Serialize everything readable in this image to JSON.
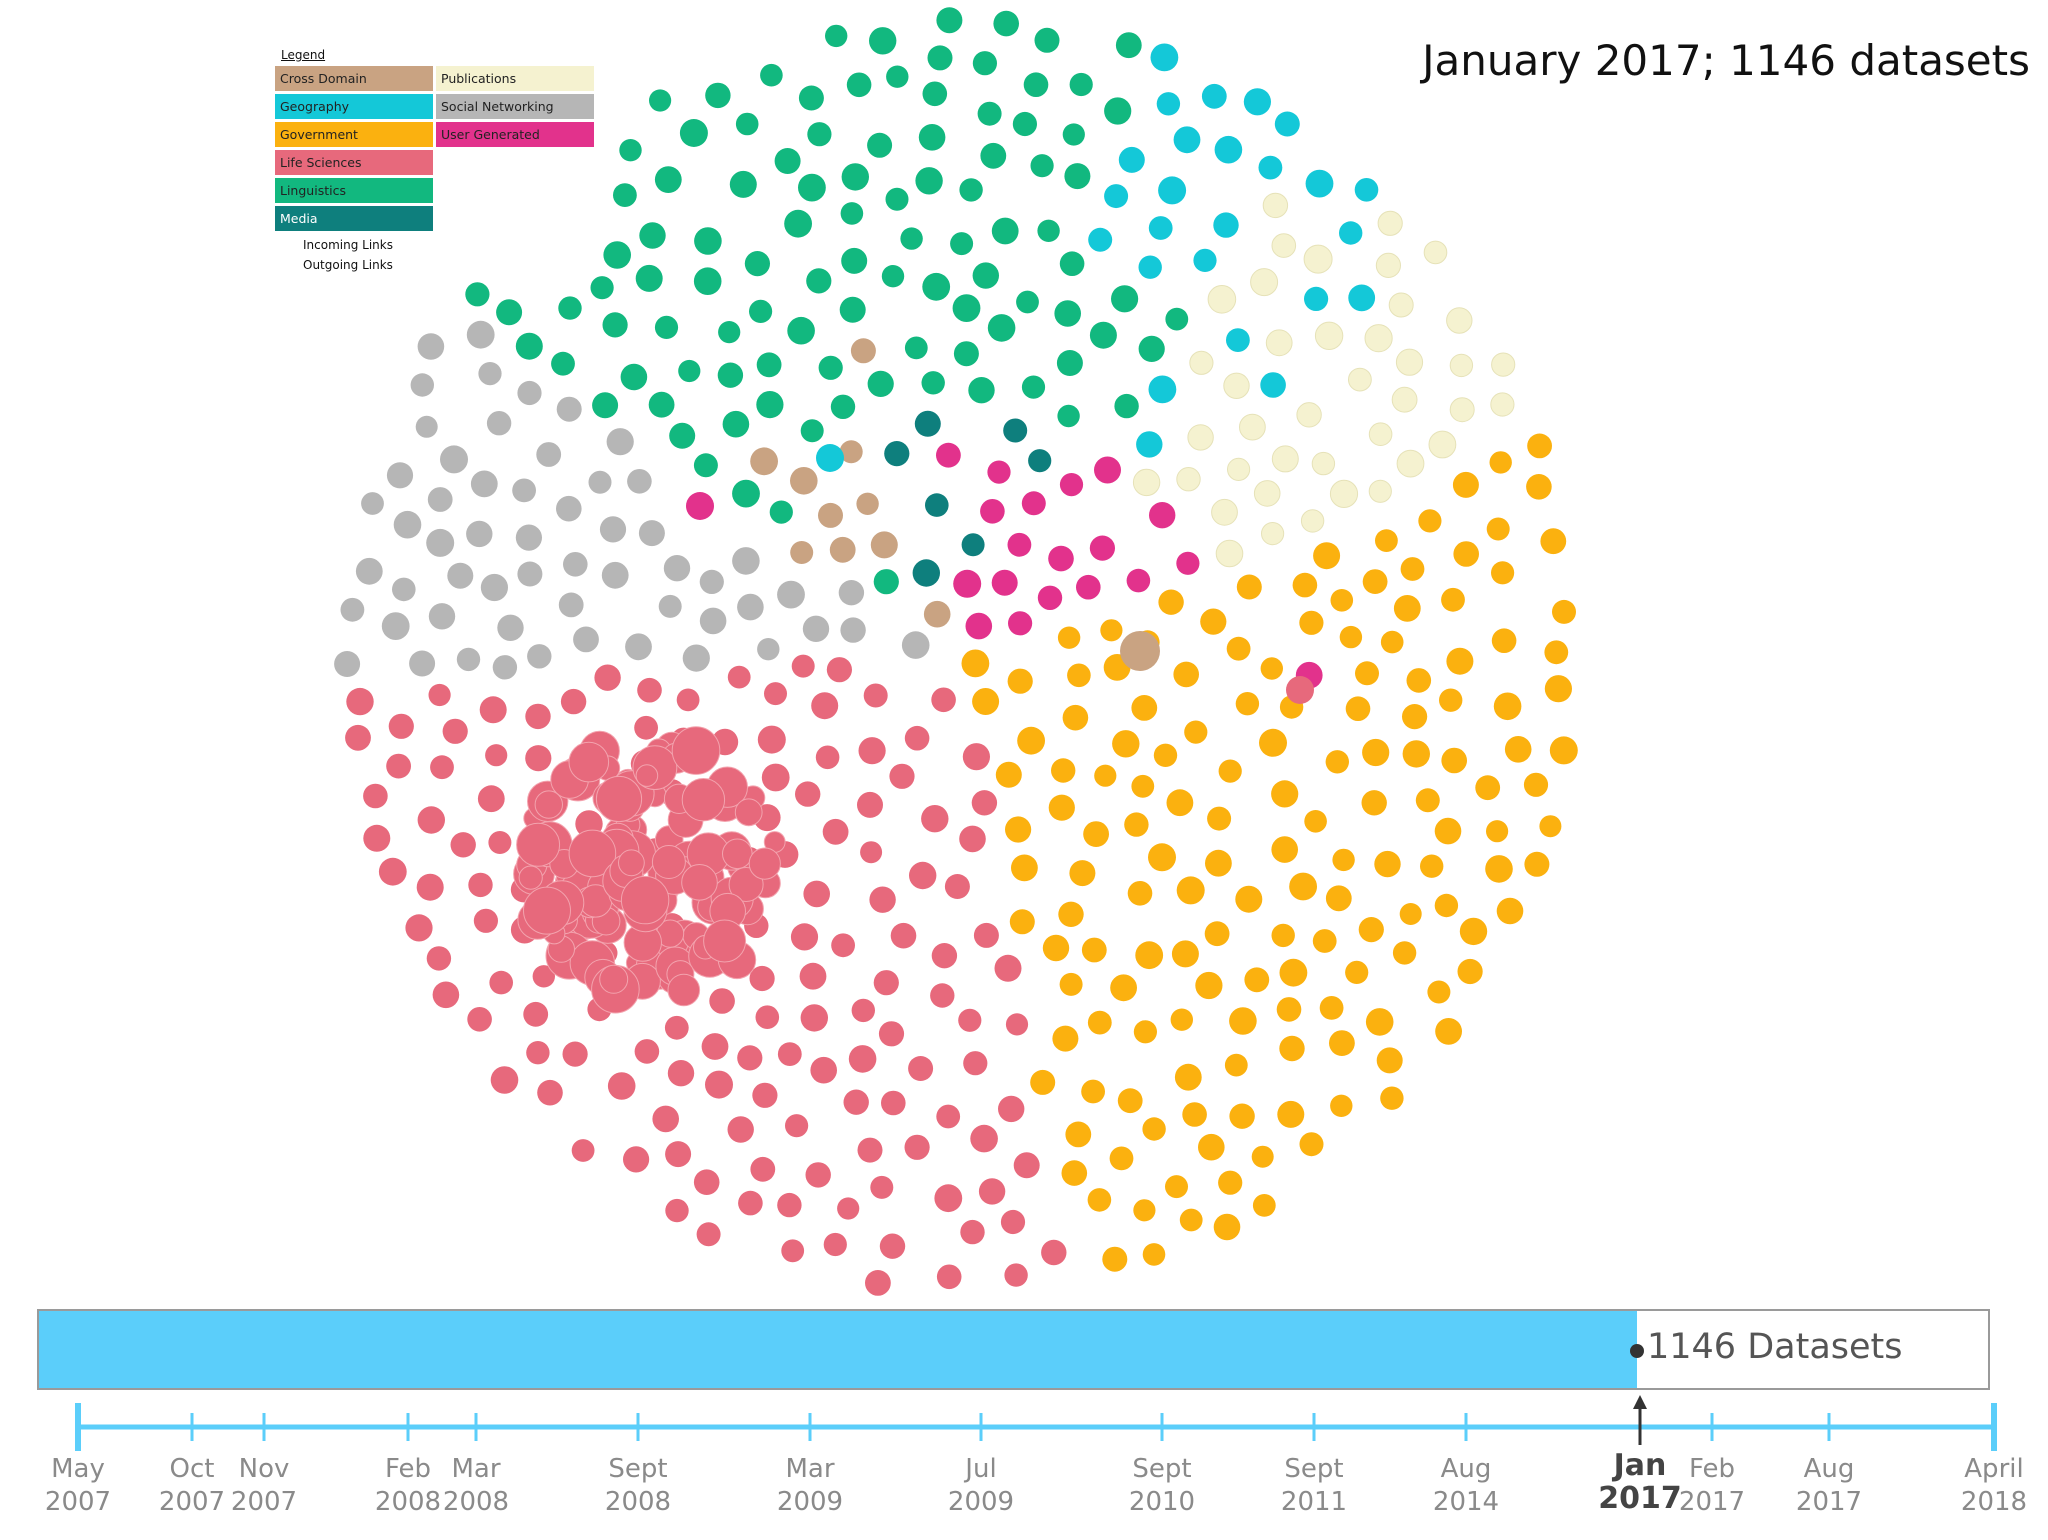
{
  "title": "January 2017; 1146 datasets",
  "legend": {
    "title": "Legend",
    "categories": [
      {
        "label": "Cross Domain",
        "color": "#c9a382"
      },
      {
        "label": "Publications",
        "color": "#f5f2d0"
      },
      {
        "label": "Geography",
        "color": "#14c8d8"
      },
      {
        "label": "Social Networking",
        "color": "#b6b6b6"
      },
      {
        "label": "Government",
        "color": "#fbb10f"
      },
      {
        "label": "User Generated",
        "color": "#e2328c"
      },
      {
        "label": "Life Sciences",
        "color": "#e7697c"
      },
      {
        "label": "Linguistics",
        "color": "#12b87f"
      },
      {
        "label": "Media",
        "color": "#0e7f7d"
      }
    ],
    "incoming_label": "Incoming Links",
    "outgoing_label": "Outgoing Links"
  },
  "progress": {
    "label": "1146 Datasets",
    "fraction": 0.82
  },
  "timeline": {
    "ticks": [
      {
        "month": "May",
        "year": "2007"
      },
      {
        "month": "Oct",
        "year": "2007"
      },
      {
        "month": "Nov",
        "year": "2007"
      },
      {
        "month": "Feb",
        "year": "2008"
      },
      {
        "month": "Mar",
        "year": "2008"
      },
      {
        "month": "Sept",
        "year": "2008"
      },
      {
        "month": "Mar",
        "year": "2009"
      },
      {
        "month": "Jul",
        "year": "2009"
      },
      {
        "month": "Sept",
        "year": "2010"
      },
      {
        "month": "Sept",
        "year": "2011"
      },
      {
        "month": "Aug",
        "year": "2014"
      },
      {
        "month": "Jan",
        "year": "2017",
        "active": true
      },
      {
        "month": "Feb",
        "year": "2017"
      },
      {
        "month": "Aug",
        "year": "2017"
      },
      {
        "month": "April",
        "year": "2018"
      }
    ],
    "axis_color": "#5bcefa"
  }
}
